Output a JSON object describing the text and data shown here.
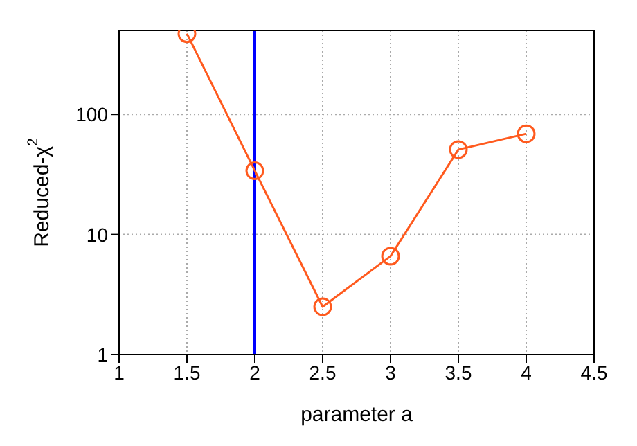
{
  "chart_data": {
    "type": "line",
    "xlabel": "parameter a",
    "ylabel": "Reduced-χ$^{2}$",
    "x": [
      1.5,
      2,
      2.5,
      3,
      3.5,
      4
    ],
    "series": [
      {
        "color": "#ff5a1e",
        "values": [
          470,
          34,
          2.5,
          6.6,
          51,
          69
        ]
      }
    ],
    "marker": "circle",
    "log": "y",
    "grid": true,
    "xlim": [
      1,
      4.5
    ],
    "xticks": [
      1,
      1.5,
      2,
      2.5,
      3,
      3.5,
      4,
      4.5
    ],
    "ylim": [
      1,
      500
    ],
    "yticks": [
      1,
      10,
      100
    ],
    "ref_lines": [
      {
        "axis": "x",
        "value": 2,
        "color": "#0000ff"
      }
    ]
  }
}
